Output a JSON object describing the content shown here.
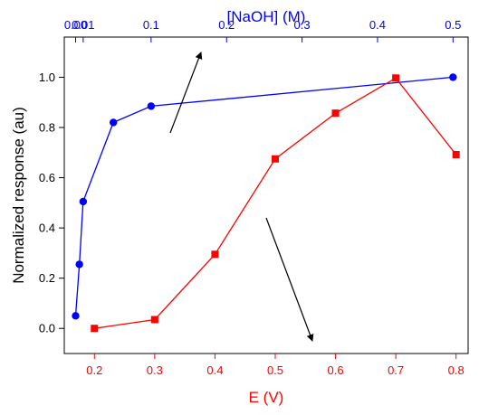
{
  "chart_data": {
    "type": "line",
    "title": "",
    "xlabel": "E (V)",
    "x2label": "[NaOH] (M)",
    "ylabel": "Normalized response (au)",
    "xlim": [
      0.15,
      0.82
    ],
    "x2lim": [
      -0.015,
      0.52
    ],
    "ylim": [
      -0.1,
      1.16
    ],
    "x_ticks": [
      "0.2",
      "0.3",
      "0.4",
      "0.5",
      "0.6",
      "0.7",
      "0.8"
    ],
    "x2_ticks": [
      "0.00",
      "0.01",
      "0.1",
      "0.2",
      "0.3",
      "0.4",
      "0.5"
    ],
    "y_ticks": [
      "0.0",
      "0.2",
      "0.4",
      "0.6",
      "0.8",
      "1.0"
    ],
    "grid": false,
    "series": [
      {
        "axis": "top",
        "color": "#0000ff",
        "marker": "circle",
        "points": [
          {
            "x": 0.0,
            "y": 0.05
          },
          {
            "x": 0.005,
            "y": 0.255
          },
          {
            "x": 0.01,
            "y": 0.505
          },
          {
            "x": 0.05,
            "y": 0.82
          },
          {
            "x": 0.1,
            "y": 0.885
          },
          {
            "x": 0.5,
            "y": 1.0
          }
        ]
      },
      {
        "axis": "bottom",
        "color": "#ff0000",
        "marker": "square",
        "points": [
          {
            "x": 0.2,
            "y": 0.0
          },
          {
            "x": 0.3,
            "y": 0.035
          },
          {
            "x": 0.4,
            "y": 0.295
          },
          {
            "x": 0.5,
            "y": 0.675
          },
          {
            "x": 0.6,
            "y": 0.857
          },
          {
            "x": 0.7,
            "y": 0.997
          },
          {
            "x": 0.8,
            "y": 0.692
          }
        ]
      }
    ],
    "annotations": [
      {
        "type": "arrow",
        "points_to": "top axis",
        "color": "#000000"
      },
      {
        "type": "arrow",
        "points_to": "bottom axis",
        "color": "#000000"
      }
    ]
  }
}
